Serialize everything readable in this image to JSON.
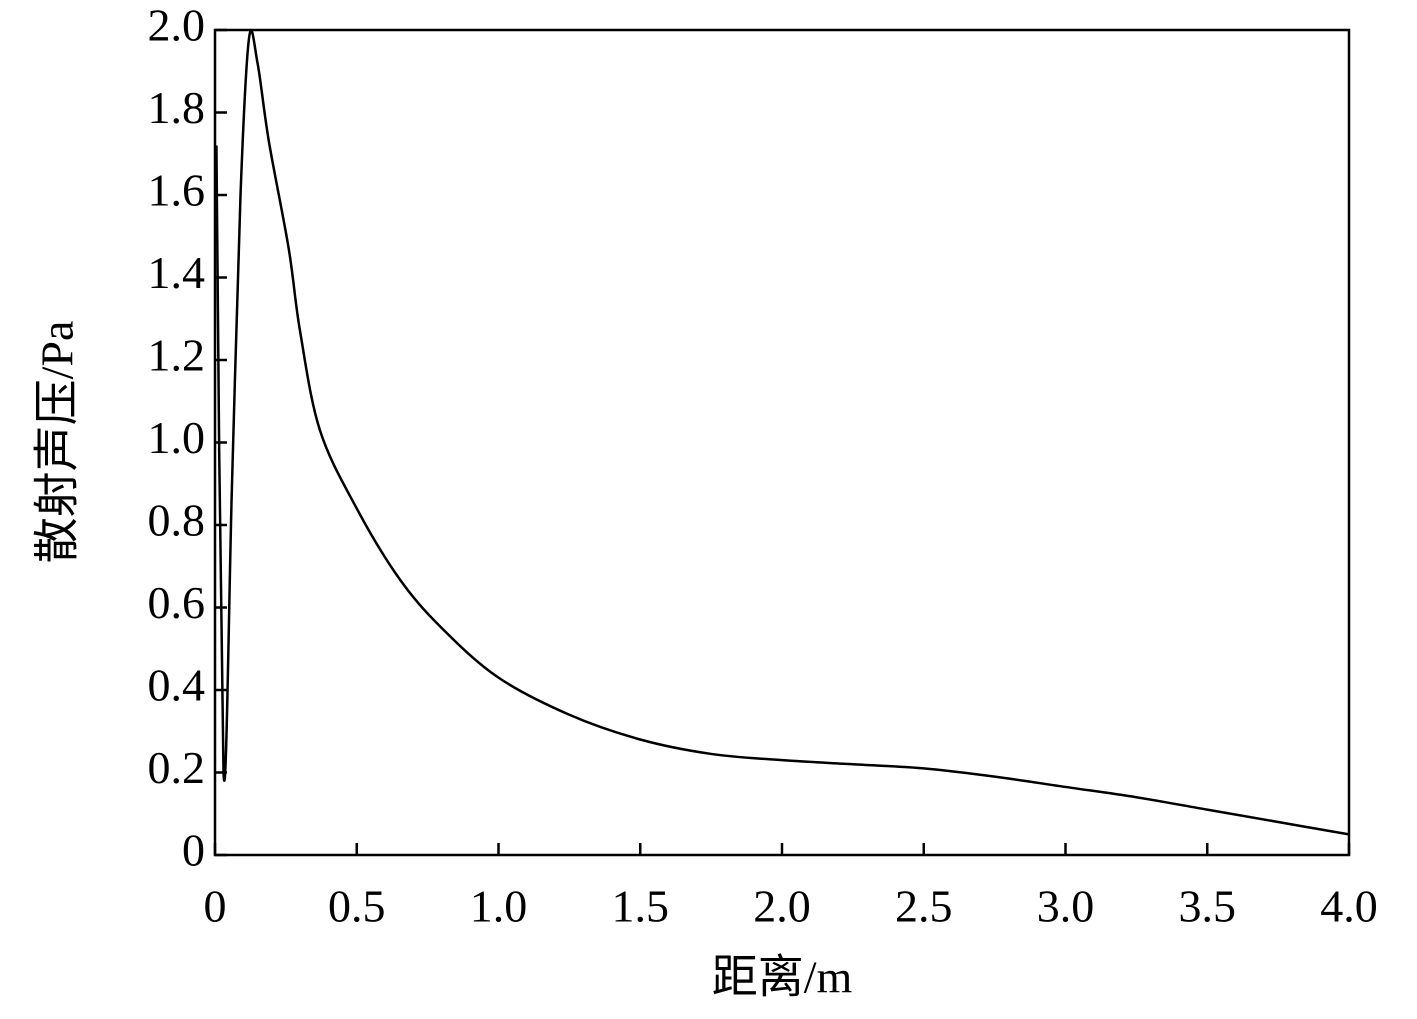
{
  "chart_data": {
    "type": "line",
    "x_label": "距离/m",
    "y_label": "散射声压/Pa",
    "x": [
      0.005,
      0.03,
      0.06,
      0.09,
      0.12,
      0.15,
      0.19,
      0.26,
      0.3,
      0.37,
      0.5,
      0.65,
      0.8,
      1.0,
      1.25,
      1.5,
      1.75,
      2.0,
      2.25,
      2.5,
      2.75,
      3.0,
      3.25,
      3.5,
      3.75,
      4.0
    ],
    "series": [
      {
        "color": "#000000",
        "values": [
          1.72,
          0.2,
          0.9,
          1.6,
          1.98,
          1.92,
          1.73,
          1.47,
          1.27,
          1.03,
          0.84,
          0.67,
          0.55,
          0.43,
          0.34,
          0.28,
          0.245,
          0.23,
          0.22,
          0.21,
          0.19,
          0.165,
          0.14,
          0.11,
          0.08,
          0.05
        ]
      }
    ],
    "xlim": [
      0,
      4
    ],
    "ylim": [
      0,
      2
    ],
    "xticks": [
      0,
      0.5,
      {
        "value": 1,
        "label": "1.0"
      },
      1.5,
      {
        "value": 2,
        "label": "2.0"
      },
      2.5,
      {
        "value": 3,
        "label": "3.0"
      },
      3.5,
      {
        "value": 4,
        "label": "4.0"
      }
    ],
    "yticks": [
      0,
      0.2,
      0.4,
      0.6,
      0.8,
      {
        "value": 1,
        "label": "1.0"
      },
      1.2,
      1.4,
      1.6,
      1.8,
      {
        "value": 2,
        "label": "2.0"
      }
    ],
    "grid": false
  }
}
